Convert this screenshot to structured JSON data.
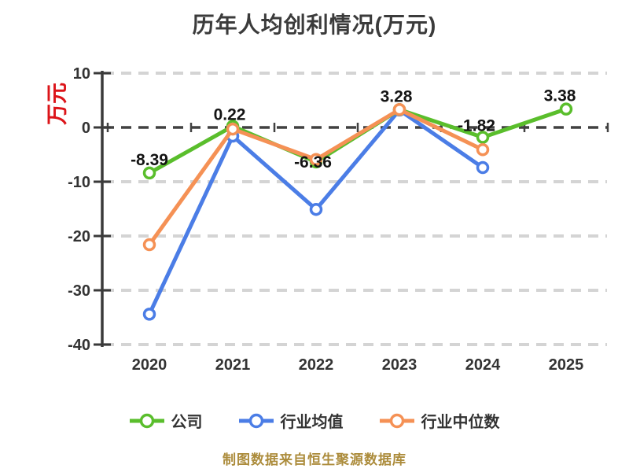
{
  "title": "历年人均创利情况(万元)",
  "y_unit_label": "万元",
  "source_note": "制图数据来自恒生聚源数据库",
  "colors": {
    "company": "#5abe2c",
    "industry_average": "#4b7de6",
    "industry_median": "#f59155",
    "grid_light": "#d4d4d4",
    "zero_line": "#414141",
    "axis": "#3a3a3a",
    "tick_label": "#333333",
    "point_label": "#141414",
    "y_unit": "#dc1419",
    "source_note": "#ac8c3c",
    "marker_fill": "#ffffff"
  },
  "chart_data": {
    "type": "line",
    "title": "历年人均创利情况(万元)",
    "xlabel": "",
    "ylabel": "万元",
    "categories": [
      "2020",
      "2021",
      "2022",
      "2023",
      "2024",
      "2025"
    ],
    "ylim": [
      -40,
      10
    ],
    "yticks": [
      10,
      0,
      -10,
      -20,
      -30,
      -40
    ],
    "grid": "horizontal-dashed",
    "legend_position": "bottom",
    "series": [
      {
        "key": "company",
        "name": "公司",
        "color": "#5abe2c",
        "values": [
          -8.39,
          0.22,
          -6.36,
          3.28,
          -1.82,
          3.38
        ],
        "point_labels": [
          "-8.39",
          "0.22",
          "-6.36",
          "3.28",
          "-1.82",
          "3.38"
        ]
      },
      {
        "key": "industry-average",
        "name": "行业均值",
        "color": "#4b7de6",
        "values": [
          -34.4,
          -1.6,
          -15.1,
          3.2,
          -7.4,
          null
        ],
        "point_labels": null
      },
      {
        "key": "industry-median",
        "name": "行业中位数",
        "color": "#f59155",
        "values": [
          -21.6,
          -0.3,
          -5.9,
          3.3,
          -4.1,
          null
        ],
        "point_labels": null
      }
    ]
  }
}
